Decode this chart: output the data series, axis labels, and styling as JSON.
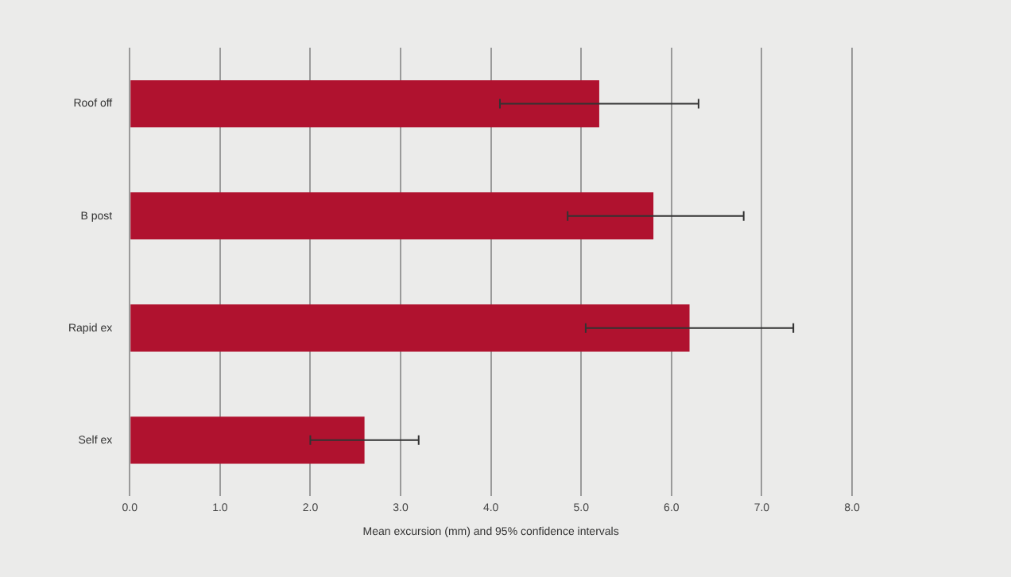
{
  "chart_data": {
    "type": "bar",
    "orientation": "horizontal",
    "categories": [
      "Roof off",
      "B post",
      "Rapid ex",
      "Self ex"
    ],
    "values": [
      5.2,
      5.8,
      6.2,
      2.6
    ],
    "errors": [
      [
        4.1,
        6.3
      ],
      [
        4.85,
        6.8
      ],
      [
        5.05,
        7.35
      ],
      [
        2.0,
        3.2
      ]
    ],
    "color": "#b0122f",
    "xlabel": "Mean excursion (mm) and 95% confidence intervals",
    "xlim": [
      0,
      8
    ],
    "xticks": [
      {
        "value": 0,
        "label": "0.0"
      },
      {
        "value": 1,
        "label": "1.0"
      },
      {
        "value": 2,
        "label": "2.0"
      },
      {
        "value": 3,
        "label": "3.0"
      },
      {
        "value": 4,
        "label": "4.0"
      },
      {
        "value": 5,
        "label": "5.0"
      },
      {
        "value": 6,
        "label": "6.0"
      },
      {
        "value": 7,
        "label": "7.0"
      },
      {
        "value": 8,
        "label": "8.0"
      }
    ],
    "grid": "x",
    "legend": false
  }
}
